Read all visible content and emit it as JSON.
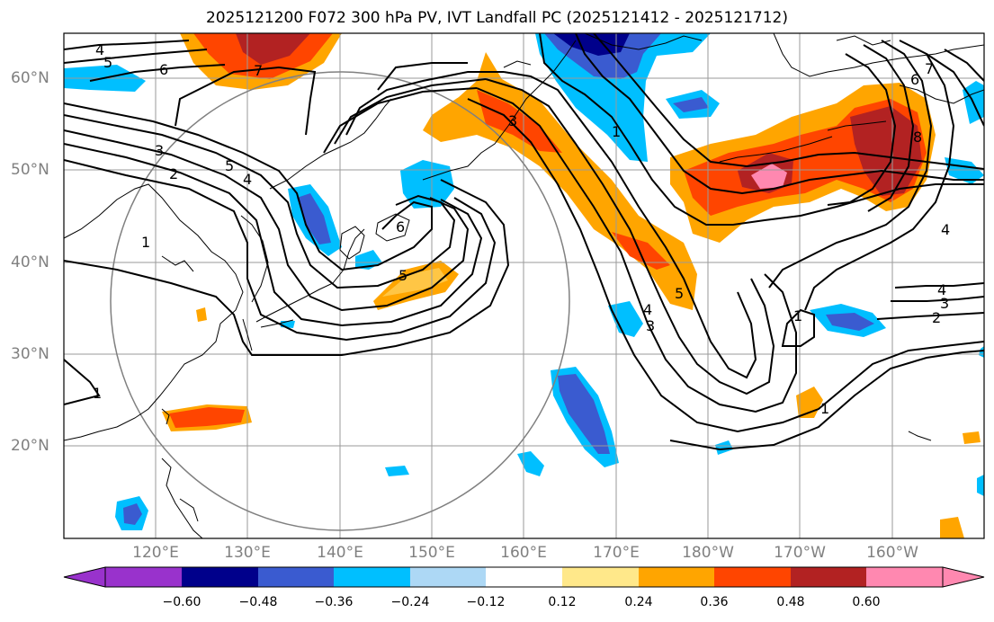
{
  "title": "2025121200 F072 300 hPa PV, IVT Landfall PC (2025121412 - 2025121712)",
  "latitude_labels": [
    "60°N",
    "50°N",
    "40°N",
    "30°N",
    "20°N"
  ],
  "longitude_labels": [
    "120°E",
    "130°E",
    "140°E",
    "150°E",
    "160°E",
    "170°E",
    "180°W",
    "170°W",
    "160°W"
  ],
  "colorbar": {
    "tick_labels": [
      "−0.60",
      "−0.48",
      "−0.36",
      "−0.24",
      "−0.12",
      "0.12",
      "0.24",
      "0.36",
      "0.48",
      "0.60"
    ],
    "colors": [
      "#9932cc",
      "#00008b",
      "#3a5bd0",
      "#00bfff",
      "#add8f5",
      "#ffffff",
      "#ffe88a",
      "#ffa500",
      "#ff4500",
      "#b22222",
      "#ff88b0"
    ]
  },
  "contour_labels": [
    "4",
    "5",
    "6",
    "7",
    "5",
    "4",
    "3",
    "2",
    "1",
    "1",
    "6",
    "5",
    "3",
    "1",
    "8",
    "6",
    "7",
    "4",
    "4",
    "3",
    "2",
    "1",
    "5",
    "4",
    "3",
    "1"
  ],
  "colors": {
    "pos_light": "#ffe88a",
    "pos_mid": "#ffa500",
    "pos_strong": "#ff4500",
    "pos_deep": "#b22222",
    "pos_max": "#ff88b0",
    "neg_light": "#add8f5",
    "neg_mid": "#00bfff",
    "neg_strong": "#3a5bd0",
    "neg_deep": "#00008b"
  }
}
